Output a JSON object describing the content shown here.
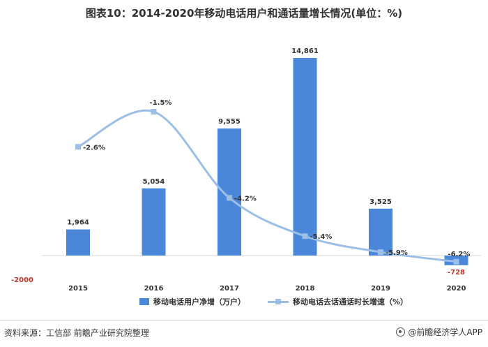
{
  "title": "图表10：2014-2020年移动电话用户和通话量增长情况(单位：%)",
  "colors": {
    "bar": "#4b87d9",
    "line": "#9bbfe6",
    "negative_label": "#c0392b"
  },
  "chart_data": {
    "type": "bar",
    "categories": [
      "2015",
      "2016",
      "2017",
      "2018",
      "2019",
      "2020"
    ],
    "series": [
      {
        "name": "移动电话用户净增（万户）",
        "type": "bar",
        "values": [
          1964,
          5054,
          9555,
          14861,
          3525,
          -728
        ],
        "labels": [
          "1,964",
          "5,054",
          "9,555",
          "14,861",
          "3,525",
          "-728"
        ]
      },
      {
        "name": "移动电话去话通话时长增速（%）",
        "type": "line",
        "smooth": true,
        "values": [
          -2.6,
          -1.5,
          -4.2,
          -5.4,
          -5.9,
          -6.2
        ],
        "labels": [
          "-2.6%",
          "-1.5%",
          "-4.2%",
          "-5.4%",
          "-5.9%",
          "-6.2%"
        ]
      }
    ],
    "y_tick_label": "-2000",
    "legend_position": "bottom"
  },
  "source": "资料来源：工信部 前瞻产业研究院整理",
  "brand": "@前瞻经济学人APP"
}
